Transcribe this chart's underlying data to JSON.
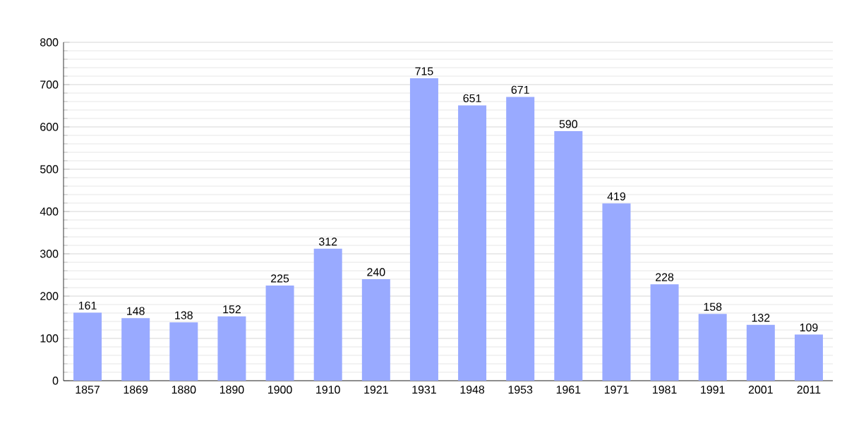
{
  "chart_data": {
    "type": "bar",
    "categories": [
      "1857",
      "1869",
      "1880",
      "1890",
      "1900",
      "1910",
      "1921",
      "1931",
      "1948",
      "1953",
      "1961",
      "1971",
      "1981",
      "1991",
      "2001",
      "2011"
    ],
    "values": [
      161,
      148,
      138,
      152,
      225,
      312,
      240,
      715,
      651,
      671,
      590,
      419,
      228,
      158,
      132,
      109
    ],
    "color": "#99aaff",
    "ylim": [
      0,
      800
    ],
    "yticks": [
      0,
      100,
      200,
      300,
      400,
      500,
      600,
      700,
      800
    ],
    "grid": "y",
    "data_labels": true
  }
}
